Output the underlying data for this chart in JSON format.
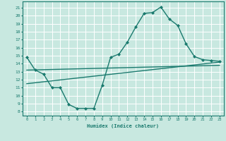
{
  "xlabel": "Humidex (Indice chaleur)",
  "background_color": "#c8e8e0",
  "grid_color": "#ffffff",
  "line_color": "#1a7a6e",
  "x_ticks": [
    0,
    1,
    2,
    3,
    4,
    5,
    6,
    7,
    8,
    9,
    10,
    11,
    12,
    13,
    14,
    15,
    16,
    17,
    18,
    19,
    20,
    21,
    22,
    23
  ],
  "y_ticks": [
    8,
    9,
    10,
    11,
    12,
    13,
    14,
    15,
    16,
    17,
    18,
    19,
    20,
    21
  ],
  "ylim": [
    7.5,
    21.8
  ],
  "xlim": [
    -0.5,
    23.5
  ],
  "main_series": {
    "x": [
      0,
      1,
      2,
      3,
      4,
      5,
      6,
      7,
      8,
      9,
      10,
      11,
      12,
      13,
      14,
      15,
      16,
      17,
      18,
      19,
      20,
      21,
      22,
      23
    ],
    "y": [
      14.8,
      13.2,
      12.7,
      11.0,
      11.0,
      8.9,
      8.4,
      8.4,
      8.4,
      11.3,
      14.8,
      15.2,
      16.7,
      18.6,
      20.3,
      20.4,
      21.1,
      19.6,
      18.8,
      16.5,
      14.9,
      14.5,
      14.4,
      14.3
    ]
  },
  "line1": {
    "x": [
      0,
      23
    ],
    "y": [
      13.2,
      13.8
    ]
  },
  "line2": {
    "x": [
      0,
      23
    ],
    "y": [
      11.5,
      14.2
    ]
  }
}
